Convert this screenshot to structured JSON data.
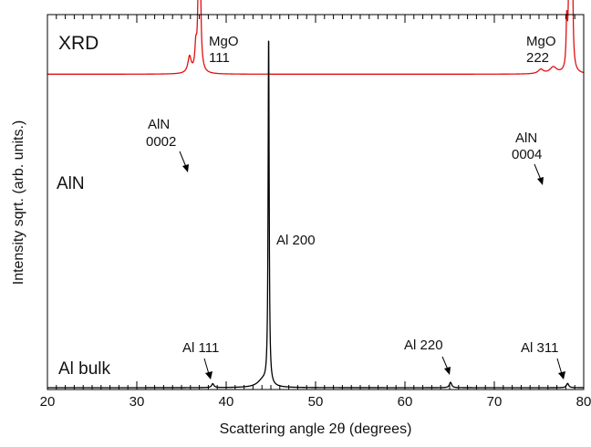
{
  "chart_data": {
    "type": "line",
    "title": "",
    "xlabel": "Scattering angle 2θ (degrees)",
    "ylabel": "Intensity sqrt. (arb. units.)",
    "xlim": [
      20,
      80
    ],
    "x_ticks": [
      20,
      30,
      40,
      50,
      60,
      70,
      80
    ],
    "x_minor_step": 1,
    "y_ticks": [],
    "grid": false,
    "legend": "none",
    "panel_label": "XRD",
    "series": [
      {
        "name": "AlN",
        "color": "#e01010",
        "baseline": 0.87,
        "peaks": [
          {
            "x": 35.9,
            "h": 0.045,
            "w": 0.22
          },
          {
            "x": 36.6,
            "h": 0.06,
            "w": 0.12
          },
          {
            "x": 37.0,
            "h": 1.0,
            "w": 0.085
          },
          {
            "x": 75.2,
            "h": 0.012,
            "w": 0.35
          },
          {
            "x": 76.6,
            "h": 0.018,
            "w": 0.45
          },
          {
            "x": 78.1,
            "h": 0.12,
            "w": 0.08
          },
          {
            "x": 78.45,
            "h": 0.87,
            "w": 0.085
          },
          {
            "x": 78.7,
            "h": 0.5,
            "w": 0.07
          }
        ]
      },
      {
        "name": "Al bulk",
        "color": "#000000",
        "baseline": 0.0,
        "peaks": [
          {
            "x": 38.5,
            "h": 0.011,
            "w": 0.15
          },
          {
            "x": 44.1,
            "h": 0.02,
            "w": 0.7
          },
          {
            "x": 44.75,
            "h": 0.97,
            "w": 0.07
          },
          {
            "x": 65.1,
            "h": 0.015,
            "w": 0.15
          },
          {
            "x": 78.2,
            "h": 0.012,
            "w": 0.15
          }
        ]
      }
    ],
    "labels": {
      "alnSample": "AlN",
      "alBulkSample": "Al bulk",
      "mgo111": [
        "MgO",
        "111"
      ],
      "mgo222": [
        "MgO",
        "222"
      ],
      "aln0002": [
        "AlN",
        "0002"
      ],
      "aln0004": [
        "AlN",
        "0004"
      ],
      "al111": "Al 111",
      "al200": "Al 200",
      "al220": "Al 220",
      "al311": "Al 311"
    }
  }
}
